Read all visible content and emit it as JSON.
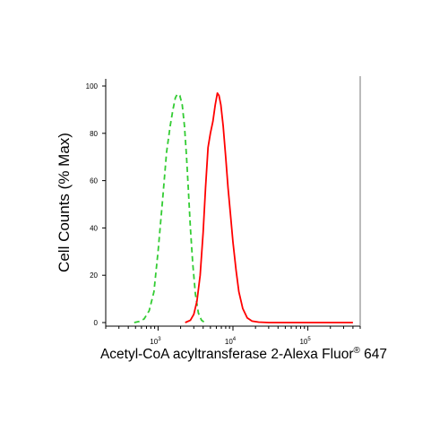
{
  "chart_data": {
    "type": "line",
    "xlabel": "Acetyl-CoA acyltransferase 2-Alexa Fluor",
    "xlabel_mark": "®",
    "xlabel_suffix": " 647",
    "ylabel": "Cell Counts (% Max)",
    "x_scale": "log",
    "xlim": [
      200,
      500000
    ],
    "ylim": [
      0,
      102
    ],
    "y_ticks": [
      0,
      20,
      40,
      60,
      80,
      100
    ],
    "x_ticks": [
      {
        "value": 1000,
        "base": "10",
        "exp": "3"
      },
      {
        "value": 10000,
        "base": "10",
        "exp": "4"
      },
      {
        "value": 100000,
        "base": "10",
        "exp": "5"
      }
    ],
    "grid": false,
    "legend": "none",
    "series": [
      {
        "color": "#33cc33",
        "style": "dashed",
        "points": [
          [
            480,
            0
          ],
          [
            560,
            0.5
          ],
          [
            650,
            1.5
          ],
          [
            760,
            5
          ],
          [
            880,
            13
          ],
          [
            1000,
            30
          ],
          [
            1150,
            52
          ],
          [
            1300,
            72
          ],
          [
            1450,
            83
          ],
          [
            1580,
            90
          ],
          [
            1700,
            95
          ],
          [
            1800,
            96.5
          ],
          [
            1950,
            96
          ],
          [
            2100,
            92
          ],
          [
            2250,
            83
          ],
          [
            2400,
            70
          ],
          [
            2550,
            55
          ],
          [
            2700,
            40
          ],
          [
            2900,
            25
          ],
          [
            3150,
            12
          ],
          [
            3450,
            4
          ],
          [
            3800,
            1
          ],
          [
            4200,
            0
          ]
        ]
      },
      {
        "color": "#ff0000",
        "style": "solid",
        "points": [
          [
            2300,
            0
          ],
          [
            2700,
            1
          ],
          [
            3000,
            3.5
          ],
          [
            3300,
            9
          ],
          [
            3650,
            20
          ],
          [
            4000,
            38
          ],
          [
            4300,
            57
          ],
          [
            4650,
            74
          ],
          [
            5000,
            80
          ],
          [
            5400,
            85
          ],
          [
            5800,
            92
          ],
          [
            6200,
            97
          ],
          [
            6500,
            96
          ],
          [
            6900,
            92
          ],
          [
            7400,
            83
          ],
          [
            8000,
            70
          ],
          [
            8600,
            57
          ],
          [
            9300,
            45
          ],
          [
            10000,
            34
          ],
          [
            11000,
            22
          ],
          [
            12000,
            13
          ],
          [
            13500,
            6
          ],
          [
            15500,
            2
          ],
          [
            18000,
            0.6
          ],
          [
            22000,
            0.2
          ],
          [
            30000,
            0
          ],
          [
            80000,
            0
          ],
          [
            400000,
            0
          ]
        ]
      }
    ]
  }
}
